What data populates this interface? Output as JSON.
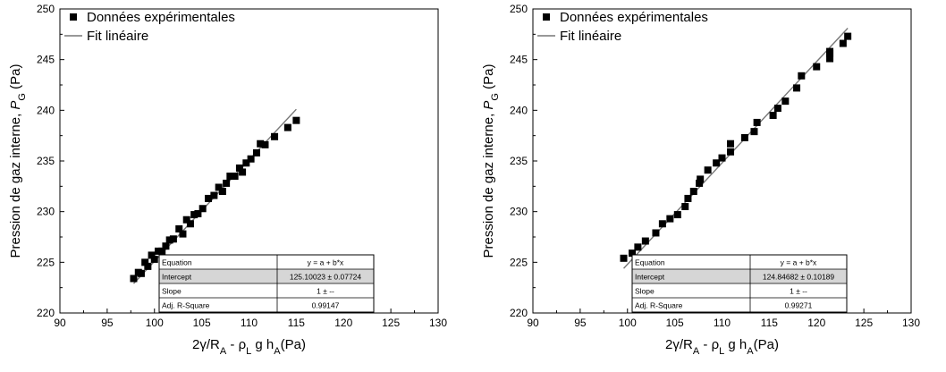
{
  "chart_data": [
    {
      "type": "scatter",
      "xlabel": "2γ/R_A - ρ_L g h_A(Pa)",
      "ylabel": "Pression de gaz interne, P_G (Pa)",
      "xlim": [
        90,
        130
      ],
      "ylim": [
        220,
        250
      ],
      "xticks": [
        "90",
        "95",
        "100",
        "105",
        "110",
        "115",
        "120",
        "125",
        "130"
      ],
      "yticks": [
        "220",
        "225",
        "230",
        "235",
        "240",
        "245",
        "250"
      ],
      "grid": false,
      "legend_position": "top-left",
      "legend": [
        "Données expérimentales",
        "Fit linéaire"
      ],
      "series": [
        {
          "name": "Données expérimentales",
          "marker": "square",
          "x": [
            97.8,
            98.3,
            98.6,
            99.0,
            99.3,
            99.7,
            100.0,
            100.4,
            100.8,
            101.2,
            101.6,
            102.0,
            102.6,
            103.0,
            103.4,
            103.8,
            104.2,
            104.6,
            105.1,
            105.7,
            106.3,
            106.8,
            107.2,
            107.6,
            108.0,
            108.5,
            109.0,
            109.3,
            109.7,
            110.2,
            110.8,
            111.2,
            111.7,
            112.7,
            114.1,
            115.0
          ],
          "y": [
            223.4,
            224.0,
            223.9,
            225.0,
            224.6,
            225.7,
            225.3,
            226.1,
            226.1,
            226.6,
            227.2,
            227.3,
            228.3,
            227.8,
            229.2,
            228.8,
            229.7,
            229.8,
            230.3,
            231.3,
            231.6,
            232.4,
            232.0,
            232.8,
            233.5,
            233.5,
            234.3,
            233.9,
            234.8,
            235.2,
            235.8,
            236.7,
            236.6,
            237.4,
            238.3,
            239.0
          ]
        },
        {
          "name": "Fit linéaire",
          "type": "line",
          "x": [
            97.8,
            115.0
          ],
          "y": [
            222.9,
            240.1
          ]
        }
      ],
      "table": {
        "header": [
          "Equation",
          "y = a + b*x"
        ],
        "rows": [
          [
            "Intercept",
            "125.10023 ± 0.07724"
          ],
          [
            "Slope",
            "1 ± --"
          ],
          [
            "Adj. R-Square",
            "0.99147"
          ]
        ]
      }
    },
    {
      "type": "scatter",
      "xlabel": "2γ/R_A - ρ_L g h_A(Pa)",
      "ylabel": "Pression de gaz interne, P_G (Pa)",
      "xlim": [
        90,
        130
      ],
      "ylim": [
        220,
        250
      ],
      "xticks": [
        "90",
        "95",
        "100",
        "105",
        "110",
        "115",
        "120",
        "125",
        "130"
      ],
      "yticks": [
        "220",
        "225",
        "230",
        "235",
        "240",
        "245",
        "250"
      ],
      "grid": false,
      "legend_position": "top-left",
      "legend": [
        "Données expérimentales",
        "Fit linéaire"
      ],
      "series": [
        {
          "name": "Données expérimentales",
          "marker": "square",
          "x": [
            99.6,
            100.5,
            101.1,
            101.9,
            103.0,
            103.7,
            104.5,
            105.3,
            106.1,
            106.4,
            107.0,
            107.6,
            107.7,
            108.5,
            109.4,
            110.0,
            110.9,
            110.9,
            112.4,
            113.4,
            113.7,
            115.4,
            115.9,
            116.7,
            117.9,
            118.4,
            120.0,
            121.4,
            121.4,
            121.4,
            122.8,
            123.3
          ],
          "y": [
            225.4,
            225.9,
            226.5,
            227.1,
            227.9,
            228.8,
            229.3,
            229.7,
            230.5,
            231.3,
            232.0,
            232.8,
            233.2,
            234.1,
            234.8,
            235.3,
            235.9,
            236.7,
            237.3,
            237.9,
            238.8,
            239.5,
            240.2,
            240.9,
            242.2,
            243.4,
            244.3,
            245.1,
            245.6,
            245.8,
            246.6,
            247.3
          ]
        },
        {
          "name": "Fit linéaire",
          "type": "line",
          "x": [
            99.6,
            123.3
          ],
          "y": [
            224.4,
            248.1
          ]
        }
      ],
      "table": {
        "header": [
          "Equation",
          "y = a + b*x"
        ],
        "rows": [
          [
            "Intercept",
            "124.84682 ± 0.10189"
          ],
          [
            "Slope",
            "1 ± --"
          ],
          [
            "Adj. R-Square",
            "0.99271"
          ]
        ]
      }
    }
  ]
}
